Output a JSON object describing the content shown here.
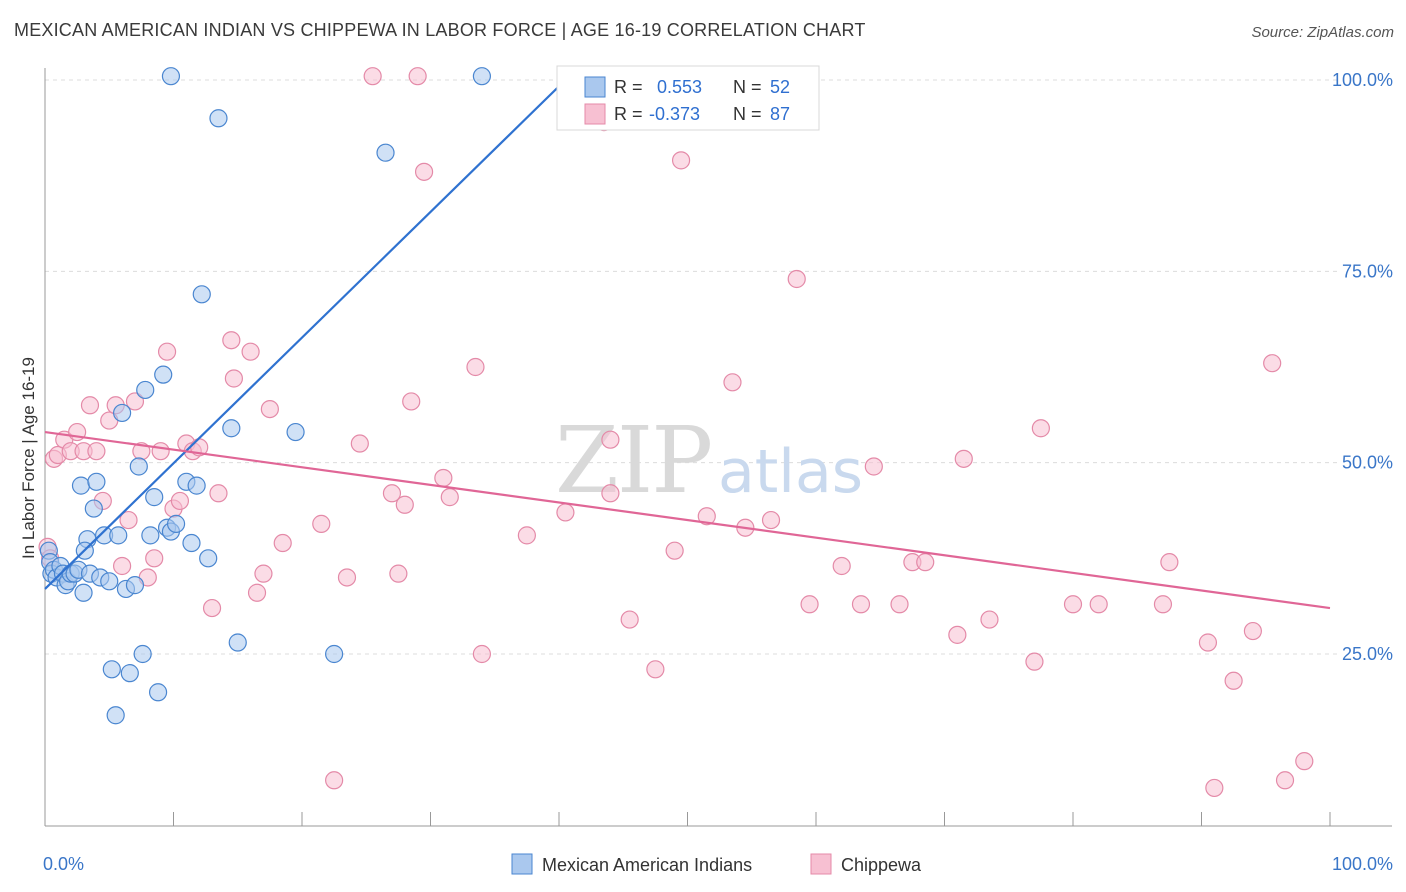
{
  "title": "MEXICAN AMERICAN INDIAN VS CHIPPEWA IN LABOR FORCE | AGE 16-19 CORRELATION CHART",
  "source": "Source: ZipAtlas.com",
  "watermark": {
    "part1": "ZIP",
    "part2": "atlas"
  },
  "colors": {
    "blue_fill": "#aac8ee",
    "blue_stroke": "#4a86d0",
    "blue_line": "#2f72d0",
    "pink_fill": "#f7c0d2",
    "pink_stroke": "#e48aa8",
    "pink_line": "#e06696",
    "grid": "#dcdcdc",
    "axis": "#999999"
  },
  "legend_box": {
    "rows": [
      {
        "r_label": "R =",
        "r_value": "0.553",
        "n_label": "N =",
        "n_value": "52",
        "series": "blue"
      },
      {
        "r_label": "R =",
        "r_value": "-0.373",
        "n_label": "N =",
        "n_value": "87",
        "series": "pink"
      }
    ]
  },
  "chart_data": {
    "type": "scatter",
    "ylabel": "In Labor Force | Age 16-19",
    "xlim": [
      0,
      100
    ],
    "ylim": [
      0,
      105
    ],
    "x_tick_labels": [
      "0.0%",
      "100.0%"
    ],
    "y_ticks": [
      25,
      50,
      75,
      100
    ],
    "y_tick_labels": [
      "25.0%",
      "50.0%",
      "75.0%",
      "100.0%"
    ],
    "grid": true,
    "legend_position": "bottom",
    "series": [
      {
        "name": "Mexican American Indians",
        "color": "blue",
        "trend": {
          "x": [
            0,
            40.5
          ],
          "y": [
            33.5,
            100
          ]
        },
        "points": [
          [
            0.3,
            38.5
          ],
          [
            0.4,
            37
          ],
          [
            0.5,
            35.5
          ],
          [
            0.7,
            36
          ],
          [
            0.9,
            35
          ],
          [
            1.2,
            36.5
          ],
          [
            1.4,
            35.5
          ],
          [
            1.6,
            34
          ],
          [
            1.8,
            34.5
          ],
          [
            2.0,
            35.5
          ],
          [
            2.3,
            35.5
          ],
          [
            2.6,
            36
          ],
          [
            2.8,
            47
          ],
          [
            3.0,
            33
          ],
          [
            3.3,
            40
          ],
          [
            3.5,
            35.5
          ],
          [
            3.8,
            44
          ],
          [
            4.0,
            47.5
          ],
          [
            4.3,
            35
          ],
          [
            4.6,
            40.5
          ],
          [
            5.0,
            34.5
          ],
          [
            5.2,
            23
          ],
          [
            5.5,
            17
          ],
          [
            5.7,
            40.5
          ],
          [
            6.0,
            56.5
          ],
          [
            6.3,
            33.5
          ],
          [
            6.6,
            22.5
          ],
          [
            7.0,
            34
          ],
          [
            7.3,
            49.5
          ],
          [
            7.6,
            25
          ],
          [
            7.8,
            59.5
          ],
          [
            8.2,
            40.5
          ],
          [
            8.5,
            45.5
          ],
          [
            8.8,
            20
          ],
          [
            9.2,
            61.5
          ],
          [
            9.5,
            41.5
          ],
          [
            9.8,
            41
          ],
          [
            10.2,
            42
          ],
          [
            11.0,
            47.5
          ],
          [
            11.4,
            39.5
          ],
          [
            11.8,
            47
          ],
          [
            12.2,
            72
          ],
          [
            12.7,
            37.5
          ],
          [
            13.5,
            95
          ],
          [
            14.5,
            54.5
          ],
          [
            15.0,
            26.5
          ],
          [
            19.5,
            54
          ],
          [
            22.5,
            25
          ],
          [
            9.8,
            100.5
          ],
          [
            26.5,
            90.5
          ],
          [
            34.0,
            100.5
          ],
          [
            3.1,
            38.5
          ]
        ]
      },
      {
        "name": "Chippewa",
        "color": "pink",
        "trend": {
          "x": [
            0,
            100
          ],
          "y": [
            54,
            31
          ]
        },
        "points": [
          [
            0.2,
            39
          ],
          [
            0.4,
            37.5
          ],
          [
            0.7,
            50.5
          ],
          [
            1.0,
            51
          ],
          [
            1.5,
            53
          ],
          [
            2.0,
            51.5
          ],
          [
            2.5,
            54
          ],
          [
            3.0,
            51.5
          ],
          [
            3.5,
            57.5
          ],
          [
            4.0,
            51.5
          ],
          [
            4.5,
            45
          ],
          [
            5.0,
            55.5
          ],
          [
            5.5,
            57.5
          ],
          [
            6.0,
            36.5
          ],
          [
            6.5,
            42.5
          ],
          [
            7.0,
            58
          ],
          [
            7.5,
            51.5
          ],
          [
            8.0,
            35
          ],
          [
            8.5,
            37.5
          ],
          [
            9.0,
            51.5
          ],
          [
            9.5,
            64.5
          ],
          [
            10.0,
            44
          ],
          [
            10.5,
            45
          ],
          [
            11.0,
            52.5
          ],
          [
            11.5,
            51.5
          ],
          [
            12.0,
            52
          ],
          [
            13.0,
            31
          ],
          [
            13.5,
            46
          ],
          [
            14.5,
            66
          ],
          [
            14.7,
            61
          ],
          [
            16.0,
            64.5
          ],
          [
            16.5,
            33
          ],
          [
            17.0,
            35.5
          ],
          [
            17.5,
            57
          ],
          [
            18.5,
            39.5
          ],
          [
            21.5,
            42
          ],
          [
            22.5,
            8.5
          ],
          [
            23.5,
            35
          ],
          [
            24.5,
            52.5
          ],
          [
            25.5,
            100.5
          ],
          [
            27.0,
            46
          ],
          [
            27.5,
            35.5
          ],
          [
            28.5,
            58
          ],
          [
            28.0,
            44.5
          ],
          [
            29.5,
            88
          ],
          [
            31.0,
            48
          ],
          [
            31.5,
            45.5
          ],
          [
            33.5,
            62.5
          ],
          [
            34.0,
            25
          ],
          [
            29.0,
            100.5
          ],
          [
            37.5,
            40.5
          ],
          [
            40.5,
            43.5
          ],
          [
            43.5,
            94.5
          ],
          [
            44.0,
            53
          ],
          [
            44.0,
            46
          ],
          [
            45.5,
            29.5
          ],
          [
            47.5,
            23
          ],
          [
            49.0,
            38.5
          ],
          [
            49.5,
            89.5
          ],
          [
            51.5,
            43
          ],
          [
            53.5,
            60.5
          ],
          [
            54.5,
            41.5
          ],
          [
            56.5,
            42.5
          ],
          [
            58.5,
            74
          ],
          [
            59.5,
            31.5
          ],
          [
            63.5,
            31.5
          ],
          [
            64.5,
            49.5
          ],
          [
            66.5,
            31.5
          ],
          [
            67.5,
            37
          ],
          [
            68.5,
            37
          ],
          [
            71.0,
            27.5
          ],
          [
            71.5,
            50.5
          ],
          [
            73.5,
            29.5
          ],
          [
            77.0,
            24
          ],
          [
            77.5,
            54.5
          ],
          [
            80.0,
            31.5
          ],
          [
            82.0,
            31.5
          ],
          [
            87.0,
            31.5
          ],
          [
            87.5,
            37
          ],
          [
            90.5,
            26.5
          ],
          [
            91.0,
            7.5
          ],
          [
            92.5,
            21.5
          ],
          [
            94.0,
            28
          ],
          [
            95.5,
            63
          ],
          [
            96.5,
            8.5
          ],
          [
            98.0,
            11
          ],
          [
            62.0,
            36.5
          ]
        ]
      }
    ]
  }
}
